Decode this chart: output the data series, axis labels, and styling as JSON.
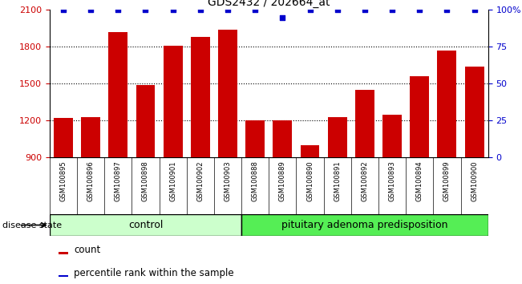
{
  "title": "GDS2432 / 202664_at",
  "samples": [
    "GSM100895",
    "GSM100896",
    "GSM100897",
    "GSM100898",
    "GSM100901",
    "GSM100902",
    "GSM100903",
    "GSM100888",
    "GSM100889",
    "GSM100890",
    "GSM100891",
    "GSM100892",
    "GSM100893",
    "GSM100894",
    "GSM100899",
    "GSM100900"
  ],
  "counts": [
    1220,
    1230,
    1920,
    1490,
    1810,
    1880,
    1940,
    1200,
    1200,
    1000,
    1230,
    1450,
    1250,
    1560,
    1770,
    1640
  ],
  "percentile_ranks": [
    100,
    100,
    100,
    100,
    100,
    100,
    100,
    100,
    95,
    100,
    100,
    100,
    100,
    100,
    100,
    100
  ],
  "bar_color": "#cc0000",
  "dot_color": "#0000cc",
  "ylim_left": [
    900,
    2100
  ],
  "ylim_right": [
    0,
    100
  ],
  "yticks_left": [
    900,
    1200,
    1500,
    1800,
    2100
  ],
  "yticks_right": [
    0,
    25,
    50,
    75,
    100
  ],
  "ytick_labels_right": [
    "0",
    "25",
    "50",
    "75",
    "100%"
  ],
  "grid_yticks": [
    1200,
    1500,
    1800
  ],
  "control_samples": 7,
  "control_label": "control",
  "disease_label": "pituitary adenoma predisposition",
  "disease_state_label": "disease state",
  "legend_count_label": "count",
  "legend_percentile_label": "percentile rank within the sample",
  "control_color": "#ccffcc",
  "disease_color": "#55ee55",
  "background_color": "#ffffff",
  "tick_area_color": "#c8c8c8"
}
